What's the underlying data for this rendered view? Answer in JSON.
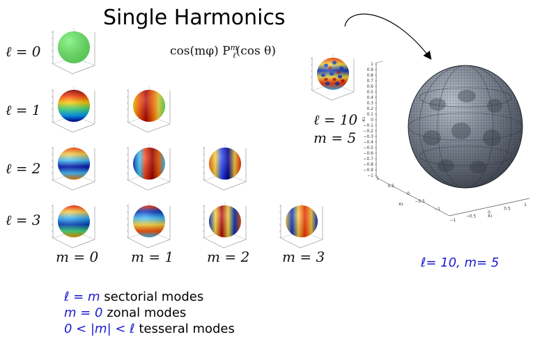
{
  "title": "Single Harmonics",
  "formula": "cos(mφ) P",
  "formula_sup": "m",
  "formula_sub": "ℓ",
  "formula_tail": "(cos θ)",
  "row_labels": [
    "ℓ = 0",
    "ℓ = 1",
    "ℓ = 2",
    "ℓ = 3"
  ],
  "column_labels": [
    "m = 0",
    "m = 1",
    "m = 2",
    "m = 3"
  ],
  "highlight": {
    "l_label": "ℓ = 10",
    "m_label": "m = 5"
  },
  "big_plot": {
    "caption": "ℓ= 10, m= 5",
    "z_ticks": [
      "1",
      "0.9",
      "0.8",
      "0.7",
      "0.6",
      "0.5",
      "0.4",
      "0.3",
      "0.2",
      "0.1",
      "0",
      "−0.1",
      "−0.2",
      "−0.3",
      "−0.4",
      "−0.5",
      "−0.6",
      "−0.7",
      "−0.8",
      "−0.9",
      "−1"
    ],
    "x2_ticks": [
      "1",
      "0.5",
      "0",
      "−0.5",
      "−1"
    ],
    "x1_ticks": [
      "−1",
      "−0.5",
      "0",
      "0.5",
      "1"
    ],
    "x1_label": "x₁",
    "x2_label": "x₂",
    "z_label": "x₃"
  },
  "legend": [
    {
      "math": "ℓ = m",
      "text": " sectorial modes"
    },
    {
      "math": "m = 0",
      "text": " zonal modes"
    },
    {
      "math": "0 < |m| < ℓ",
      "text": " tesseral modes"
    }
  ],
  "colors": {
    "blue_text": "#1a1ad0",
    "surface": "#6a7280",
    "mesh": "#2b2f36",
    "green": "#6ef06a"
  }
}
